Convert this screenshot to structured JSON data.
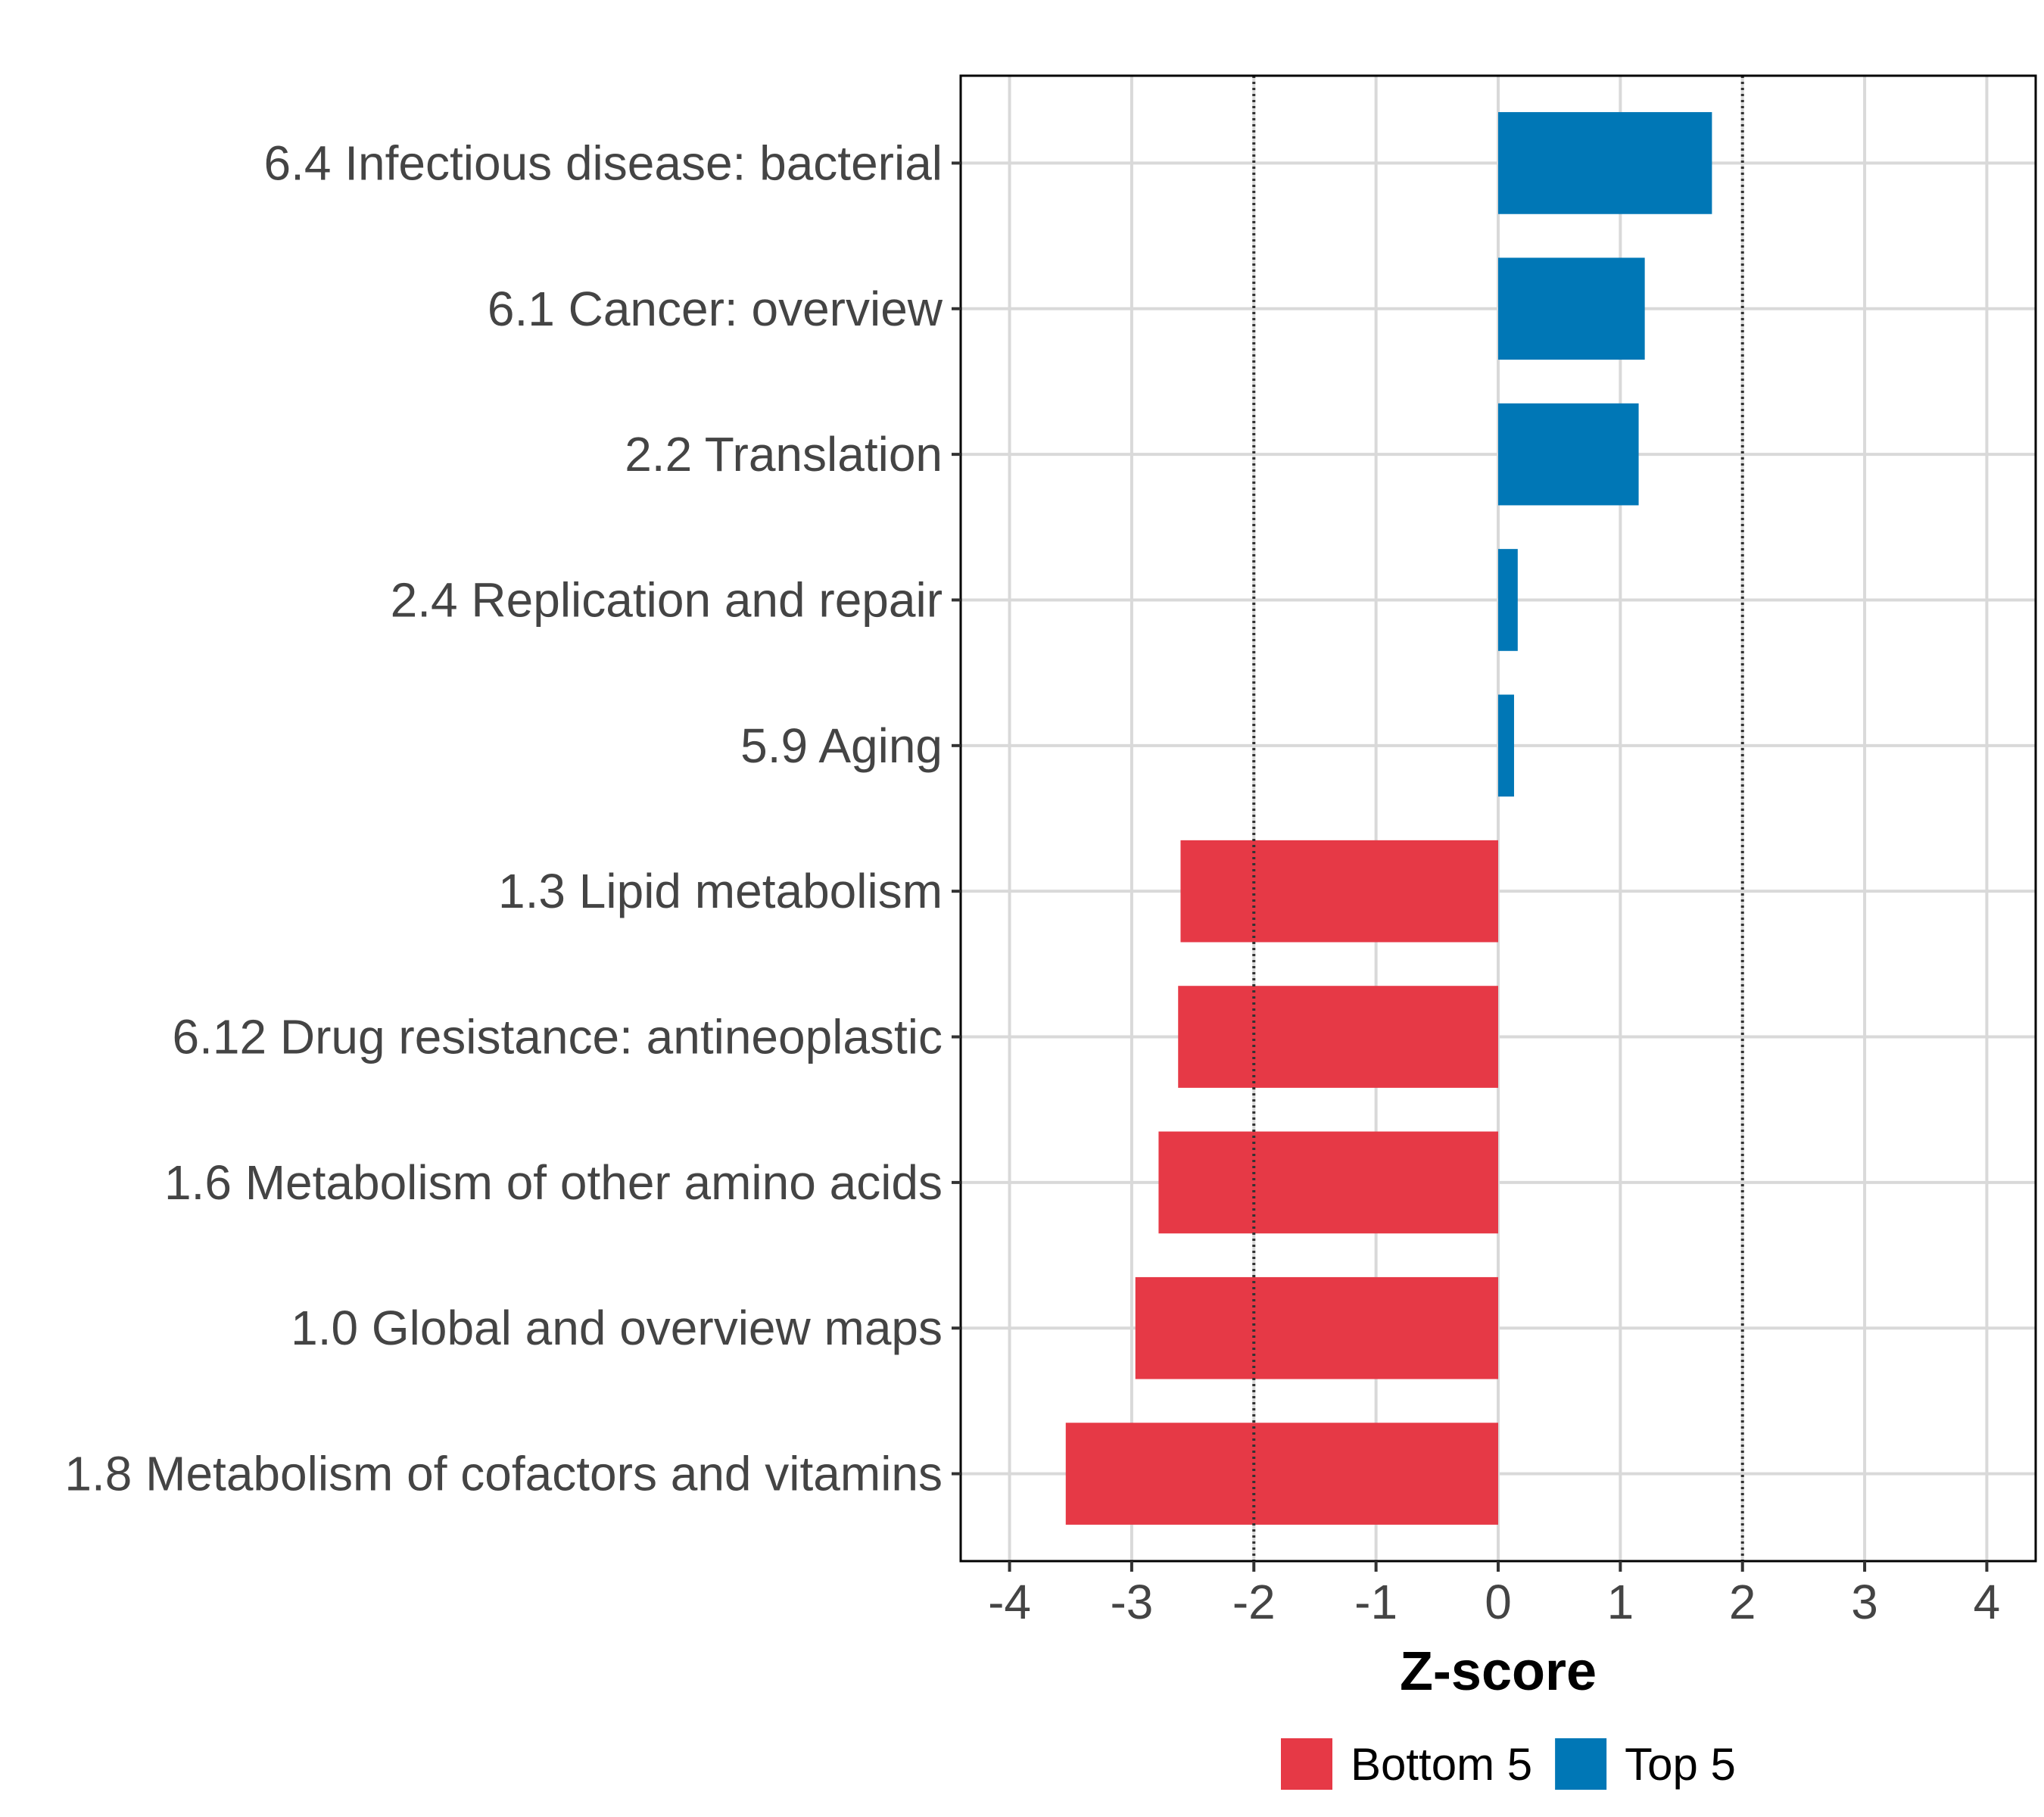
{
  "chart_data": {
    "type": "bar",
    "orientation": "horizontal",
    "title": "",
    "xlabel": "Z-score",
    "ylabel": "",
    "xlim": [
      -4,
      4
    ],
    "xticks": [
      -4,
      -3,
      -2,
      -1,
      0,
      1,
      2,
      3,
      4
    ],
    "reference_lines": [
      -2,
      2
    ],
    "grid": true,
    "categories": [
      "6.4 Infectious disease: bacterial",
      "6.1 Cancer: overview",
      "2.2 Translation",
      "2.4 Replication and repair",
      "5.9 Aging",
      "1.3 Lipid metabolism",
      "6.12 Drug resistance: antineoplastic",
      "1.6 Metabolism of other amino acids",
      "1.0 Global and overview maps",
      "1.8 Metabolism of cofactors and vitamins"
    ],
    "values": [
      1.75,
      1.2,
      1.15,
      0.16,
      0.13,
      -2.6,
      -2.62,
      -2.78,
      -2.97,
      -3.54
    ],
    "groups": [
      "Top 5",
      "Top 5",
      "Top 5",
      "Top 5",
      "Top 5",
      "Bottom 5",
      "Bottom 5",
      "Bottom 5",
      "Bottom 5",
      "Bottom 5"
    ],
    "colors": {
      "Bottom 5": "#E63946",
      "Top 5": "#0077B6"
    },
    "legend": {
      "position": "bottom",
      "entries": [
        {
          "name": "Bottom 5",
          "color": "#E63946"
        },
        {
          "name": "Top 5",
          "color": "#0077B6"
        }
      ]
    }
  }
}
